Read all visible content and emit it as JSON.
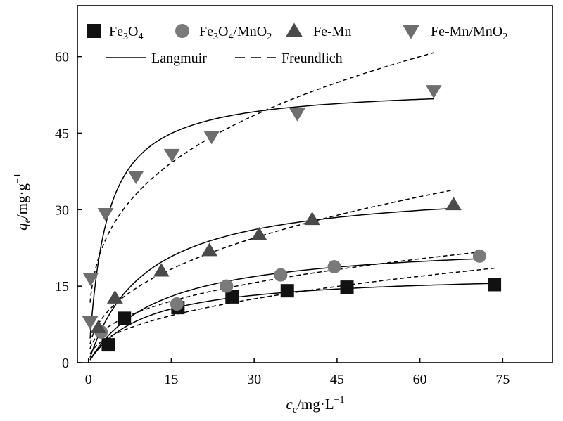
{
  "chart_data": {
    "type": "scatter",
    "title": "",
    "xlabel_parts": [
      "c",
      "e",
      "/mg·L",
      "−1"
    ],
    "ylabel_parts": [
      "q",
      "e",
      "/mg·g",
      "−1"
    ],
    "xlim": [
      -2,
      84
    ],
    "ylim": [
      0,
      70
    ],
    "xticks": [
      0,
      15,
      30,
      45,
      60,
      75
    ],
    "yticks": [
      0,
      15,
      30,
      45,
      60
    ],
    "grid": false,
    "legend_position": "top",
    "series": [
      {
        "name_parts": [
          "Fe",
          "3",
          "O",
          "4"
        ],
        "marker": "square",
        "color": "#111111",
        "x": [
          3.6,
          6.5,
          16.2,
          26.0,
          36.0,
          46.8,
          73.5
        ],
        "y": [
          3.5,
          8.7,
          10.8,
          12.9,
          14.1,
          14.8,
          15.3
        ]
      },
      {
        "name_parts": [
          "Fe",
          "3",
          "O",
          "4",
          "/MnO",
          "2"
        ],
        "marker": "circle",
        "color": "#7a7a7a",
        "x": [
          2.3,
          16.0,
          25.0,
          34.8,
          44.5,
          70.8
        ],
        "y": [
          6.0,
          11.5,
          15.0,
          17.2,
          18.8,
          20.9
        ]
      },
      {
        "name_parts": [
          "Fe-Mn"
        ],
        "marker": "triangle-up",
        "color": "#4a4a4a",
        "x": [
          1.8,
          4.8,
          13.2,
          21.9,
          30.9,
          40.5,
          66.1
        ],
        "y": [
          6.9,
          12.7,
          18.0,
          22.0,
          25.1,
          28.1,
          31.0
        ]
      },
      {
        "name_parts": [
          "Fe-Mn/MnO",
          "2"
        ],
        "marker": "triangle-down",
        "color": "#6e6e6e",
        "x": [
          0.3,
          0.4,
          3.1,
          8.6,
          15.1,
          22.3,
          37.8,
          62.5
        ],
        "y": [
          8.0,
          16.5,
          29.2,
          36.5,
          40.8,
          44.3,
          48.8,
          53.3
        ]
      }
    ],
    "fit_legend": [
      {
        "name": "Langmuir",
        "style": "solid"
      },
      {
        "name": "Freundlich",
        "style": "dashed"
      }
    ]
  }
}
